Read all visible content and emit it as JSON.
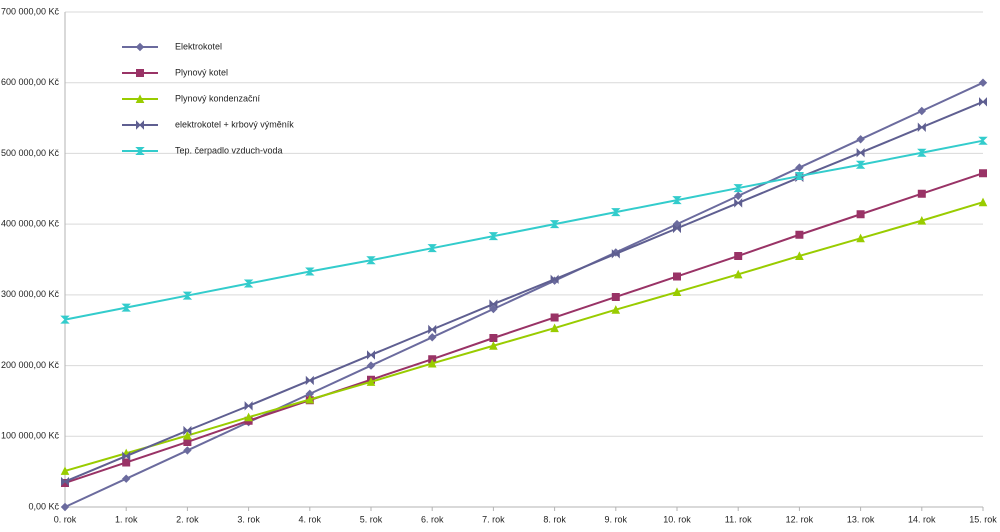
{
  "chart_data": {
    "type": "line",
    "categories": [
      "0. rok",
      "1. rok",
      "2. rok",
      "3. rok",
      "4. rok",
      "5. rok",
      "6. rok",
      "7. rok",
      "8. rok",
      "9. rok",
      "10. rok",
      "11. rok",
      "12. rok",
      "13. rok",
      "14. rok",
      "15. rok"
    ],
    "series": [
      {
        "name": "Elektrokotel",
        "color": "#6b6b9e",
        "marker": "diamond",
        "values": [
          0,
          40000,
          80000,
          120000,
          160000,
          200000,
          240000,
          280000,
          320000,
          360000,
          400000,
          440000,
          480000,
          520000,
          560000,
          600000
        ]
      },
      {
        "name": "Plynový kotel",
        "color": "#993366",
        "marker": "square",
        "values": [
          34000,
          63000,
          92000,
          122000,
          151000,
          180000,
          209000,
          239000,
          268000,
          297000,
          326000,
          355000,
          385000,
          414000,
          443000,
          472000
        ]
      },
      {
        "name": "Plynový kondenzační",
        "color": "#99cc00",
        "marker": "triangle",
        "values": [
          51000,
          76000,
          101000,
          127000,
          152000,
          177000,
          203000,
          228000,
          253000,
          279000,
          304000,
          329000,
          355000,
          380000,
          405000,
          431000
        ]
      },
      {
        "name": "elektrokotel + krbový výměník",
        "color": "#5f5f91",
        "marker": "bowtie",
        "values": [
          36000,
          72000,
          108000,
          143000,
          179000,
          215000,
          251000,
          287000,
          322000,
          358000,
          394000,
          430000,
          466000,
          501000,
          537000,
          573000
        ]
      },
      {
        "name": "Tep. čerpadlo vzduch-voda",
        "color": "#33cccc",
        "marker": "hourglass",
        "values": [
          265000,
          282000,
          299000,
          316000,
          333000,
          349000,
          366000,
          383000,
          400000,
          417000,
          434000,
          451000,
          468000,
          484000,
          501000,
          518000
        ]
      }
    ],
    "ylim": [
      0,
      700000
    ],
    "yticks": [
      {
        "value": 0,
        "label": "0,00 Kč"
      },
      {
        "value": 100000,
        "label": "100 000,00 Kč"
      },
      {
        "value": 200000,
        "label": "200 000,00 Kč"
      },
      {
        "value": 300000,
        "label": "300 000,00 Kč"
      },
      {
        "value": 400000,
        "label": "400 000,00 Kč"
      },
      {
        "value": 500000,
        "label": "500 000,00 Kč"
      },
      {
        "value": 600000,
        "label": "600 000,00 Kč"
      },
      {
        "value": 700000,
        "label": "700 000,00 Kč"
      }
    ],
    "grid": true,
    "legend": "top-left"
  }
}
